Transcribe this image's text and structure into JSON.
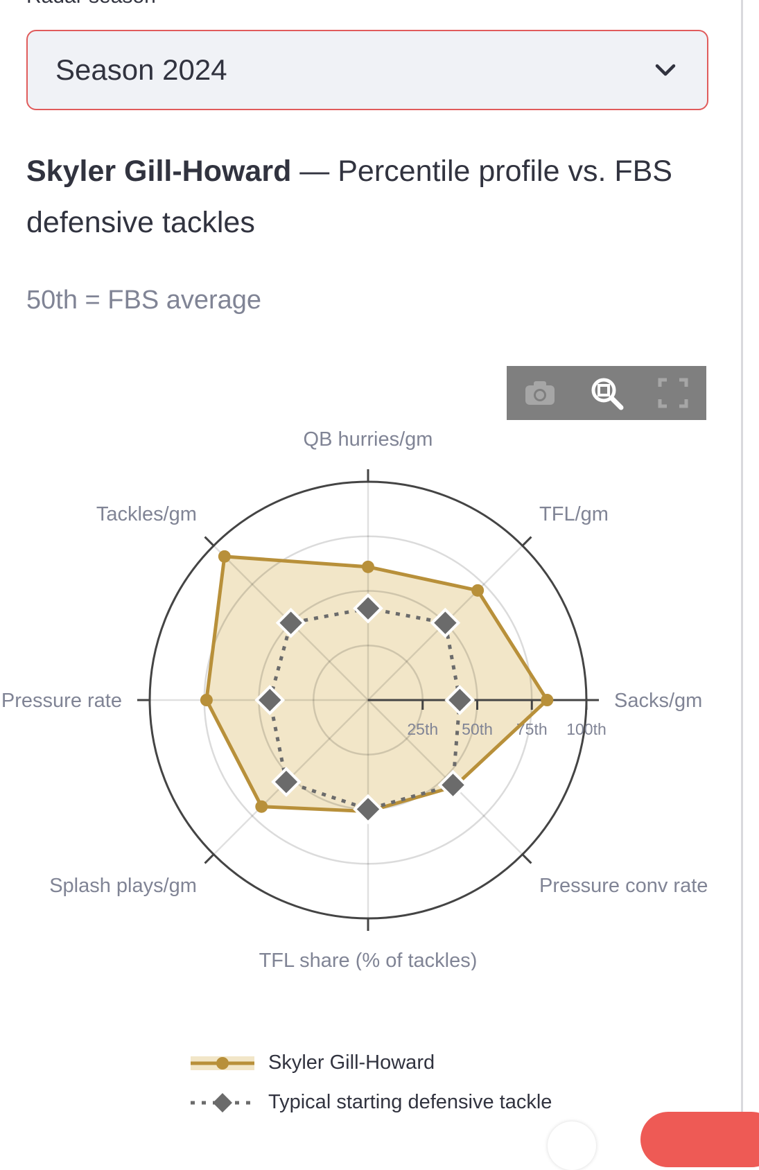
{
  "select": {
    "label": "Radar season",
    "value": "Season 2024",
    "chevron_icon": "chevron-down-icon"
  },
  "heading": {
    "player": "Skyler Gill-Howard",
    "rest": " — Percentile profile vs. FBS defensive tackles"
  },
  "subtitle": "50th = FBS average",
  "modebar": {
    "icons": [
      "camera-icon",
      "zoom-icon",
      "autoscale-icon"
    ],
    "background": "#7f7f7f"
  },
  "chart_data": {
    "type": "radar",
    "axes": [
      "Sacks/gm",
      "TFL/gm",
      "QB hurries/gm",
      "Tackles/gm",
      "Pressure rate",
      "Splash plays/gm",
      "TFL share (% of tackles)",
      "Pressure conv rate"
    ],
    "radial_range": [
      0,
      100
    ],
    "radial_ticks": [
      "25th",
      "50th",
      "75th",
      "100th"
    ],
    "radial_tick_values": [
      25,
      50,
      75,
      100
    ],
    "grid": true,
    "legend_placement": "bottom",
    "series": [
      {
        "name": "Skyler Gill-Howard",
        "values": [
          82,
          71,
          61,
          93,
          74,
          69,
          51,
          56
        ],
        "color": "#b8903a",
        "fill": "#f2e6c8",
        "marker": "circle",
        "line": "solid"
      },
      {
        "name": "Typical starting defensive tackle",
        "values": [
          42,
          50,
          42,
          50,
          45,
          53,
          50,
          55
        ],
        "color": "#6b6b6b",
        "marker": "diamond",
        "line": "dot"
      }
    ]
  }
}
